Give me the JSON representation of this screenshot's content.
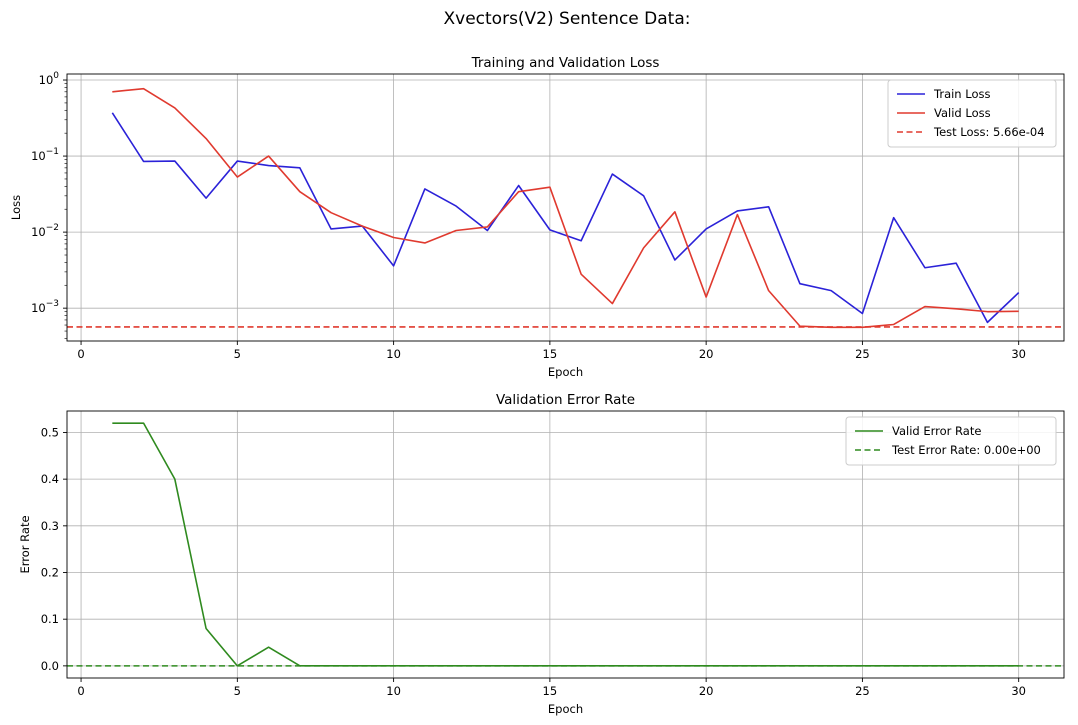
{
  "suptitle": "Xvectors(V2) Sentence Data:",
  "colors": {
    "train": "#2b22d8",
    "valid": "#e03a2f",
    "error": "#2f8a1f"
  },
  "chart_data": [
    {
      "type": "line",
      "title": "Training and Validation Loss",
      "xlabel": "Epoch",
      "ylabel": "Loss",
      "yscale": "log",
      "xlim": [
        -0.45,
        31.45
      ],
      "ylim": [
        0.00037,
        1.2
      ],
      "xticks": [
        0,
        5,
        10,
        15,
        20,
        25,
        30
      ],
      "yticks": [
        {
          "value": 0.001,
          "base": "10",
          "exp": "−3"
        },
        {
          "value": 0.01,
          "base": "10",
          "exp": "−2"
        },
        {
          "value": 0.1,
          "base": "10",
          "exp": "−1"
        },
        {
          "value": 1,
          "base": "10",
          "exp": "0"
        }
      ],
      "grid": true,
      "legend_position": "top-right",
      "x": [
        1,
        2,
        3,
        4,
        5,
        6,
        7,
        8,
        9,
        10,
        11,
        12,
        13,
        14,
        15,
        16,
        17,
        18,
        19,
        20,
        21,
        22,
        23,
        24,
        25,
        26,
        27,
        28,
        29,
        30
      ],
      "series": [
        {
          "name": "Train Loss",
          "color": "#2b22d8",
          "style": "solid",
          "values": [
            0.37,
            0.085,
            0.086,
            0.028,
            0.086,
            0.075,
            0.07,
            0.011,
            0.012,
            0.0036,
            0.037,
            0.022,
            0.0105,
            0.041,
            0.0107,
            0.0077,
            0.058,
            0.03,
            0.0043,
            0.011,
            0.019,
            0.0215,
            0.0021,
            0.0017,
            0.00085,
            0.0155,
            0.0034,
            0.0039,
            0.00065,
            0.0016
          ]
        },
        {
          "name": "Valid Loss",
          "color": "#e03a2f",
          "style": "solid",
          "values": [
            0.7,
            0.77,
            0.43,
            0.17,
            0.053,
            0.1,
            0.034,
            0.018,
            0.012,
            0.0085,
            0.0072,
            0.0105,
            0.0117,
            0.034,
            0.039,
            0.0028,
            0.00115,
            0.0062,
            0.0185,
            0.0014,
            0.017,
            0.0017,
            0.00058,
            0.00056,
            0.00056,
            0.00061,
            0.00105,
            0.00098,
            0.0009,
            0.00091
          ]
        },
        {
          "name": "Test Loss: 5.66e-04",
          "color": "#e03a2f",
          "style": "dashed",
          "hline": 0.000566
        }
      ]
    },
    {
      "type": "line",
      "title": "Validation Error Rate",
      "xlabel": "Epoch",
      "ylabel": "Error Rate",
      "xlim": [
        -0.45,
        31.45
      ],
      "ylim": [
        -0.026,
        0.546
      ],
      "xticks": [
        0,
        5,
        10,
        15,
        20,
        25,
        30
      ],
      "yticks": [
        {
          "value": 0.0,
          "label": "0.0"
        },
        {
          "value": 0.1,
          "label": "0.1"
        },
        {
          "value": 0.2,
          "label": "0.2"
        },
        {
          "value": 0.3,
          "label": "0.3"
        },
        {
          "value": 0.4,
          "label": "0.4"
        },
        {
          "value": 0.5,
          "label": "0.5"
        }
      ],
      "grid": true,
      "legend_position": "top-right",
      "x": [
        1,
        2,
        3,
        4,
        5,
        6,
        7,
        8,
        9,
        10,
        11,
        12,
        13,
        14,
        15,
        16,
        17,
        18,
        19,
        20,
        21,
        22,
        23,
        24,
        25,
        26,
        27,
        28,
        29,
        30
      ],
      "series": [
        {
          "name": "Valid Error Rate",
          "color": "#2f8a1f",
          "style": "solid",
          "values": [
            0.52,
            0.52,
            0.4,
            0.08,
            0.0,
            0.04,
            0.0,
            0.0,
            0.0,
            0.0,
            0.0,
            0.0,
            0.0,
            0.0,
            0.0,
            0.0,
            0.0,
            0.0,
            0.0,
            0.0,
            0.0,
            0.0,
            0.0,
            0.0,
            0.0,
            0.0,
            0.0,
            0.0,
            0.0,
            0.0
          ]
        },
        {
          "name": "Test Error Rate: 0.00e+00",
          "color": "#2f8a1f",
          "style": "dashed",
          "hline": 0.0
        }
      ]
    }
  ]
}
